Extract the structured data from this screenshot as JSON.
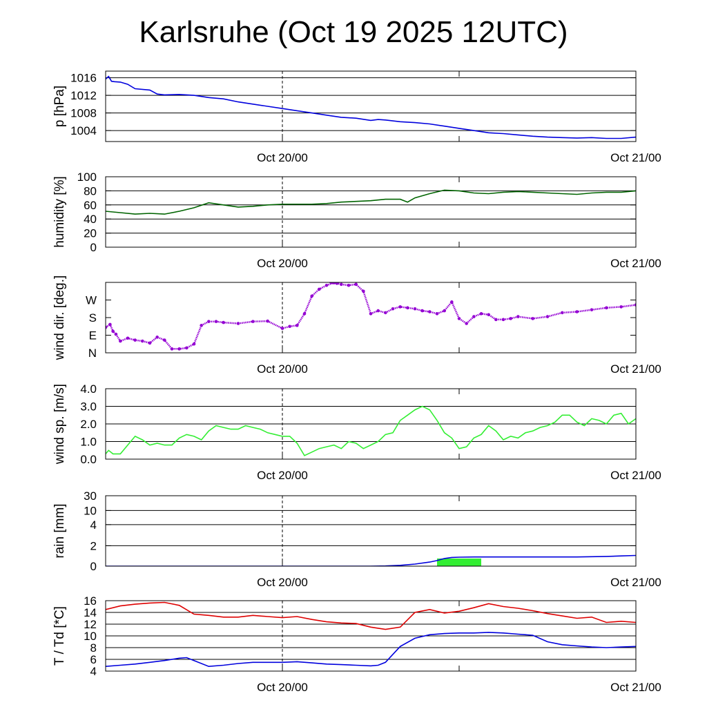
{
  "title": "Karlsruhe (Oct 19 2025 12UTC)",
  "colors": {
    "pressure": "#0000dd",
    "humidity": "#006400",
    "wind_dir": "#9400d3",
    "wind_sp": "#33ee33",
    "rain_line": "#0000dd",
    "rain_bar": "#33ee33",
    "temp": "#dd0000",
    "dewpoint": "#0000dd"
  },
  "chart_data": [
    {
      "id": "pressure",
      "type": "line",
      "ylabel": "p [hPa]",
      "ylim": [
        1001.5,
        1017.5
      ],
      "yticks": [
        1004,
        1008,
        1012,
        1016
      ],
      "yticklabels": [
        "1004",
        "1008",
        "1012",
        "1016"
      ],
      "xlim": [
        0,
        36
      ],
      "xticks": [
        12,
        36
      ],
      "xticklabels": [
        "Oct 20/00",
        "Oct 21/00"
      ],
      "series": [
        {
          "name": "pressure",
          "x": [
            0,
            0.2,
            0.4,
            0.6,
            1,
            1.5,
            2,
            3,
            3.5,
            4,
            5,
            6,
            7,
            8,
            9,
            10,
            11,
            12,
            13,
            14,
            15,
            16,
            17,
            18,
            18.5,
            19,
            20,
            21,
            22,
            23,
            24,
            25,
            26,
            27,
            28,
            29,
            30,
            31,
            32,
            33,
            34,
            35,
            36
          ],
          "y": [
            1015.7,
            1016.3,
            1015.2,
            1015.1,
            1015.0,
            1014.5,
            1013.5,
            1013.2,
            1012.3,
            1012.1,
            1012.2,
            1012.0,
            1011.5,
            1011.2,
            1010.5,
            1010.0,
            1009.5,
            1009.0,
            1008.5,
            1008.0,
            1007.5,
            1007.0,
            1006.8,
            1006.3,
            1006.5,
            1006.4,
            1006.0,
            1005.8,
            1005.5,
            1005.0,
            1004.5,
            1004.0,
            1003.5,
            1003.3,
            1003.0,
            1002.7,
            1002.5,
            1002.4,
            1002.3,
            1002.4,
            1002.2,
            1002.2,
            1002.5
          ]
        }
      ]
    },
    {
      "id": "humidity",
      "type": "line",
      "ylabel": "humidity [%]",
      "ylim": [
        0,
        100
      ],
      "yticks": [
        0,
        20,
        40,
        60,
        80,
        100
      ],
      "yticklabels": [
        "0",
        "20",
        "40",
        "60",
        "80",
        "100"
      ],
      "xlim": [
        0,
        36
      ],
      "xticks": [
        12,
        36
      ],
      "xticklabels": [
        "Oct 20/00",
        "Oct 21/00"
      ],
      "series": [
        {
          "name": "humidity",
          "x": [
            0,
            1,
            2,
            3,
            4,
            5,
            6,
            7,
            8,
            9,
            10,
            11,
            12,
            13,
            14,
            15,
            16,
            17,
            18,
            19,
            20,
            20.5,
            21,
            22,
            23,
            24,
            25,
            26,
            27,
            28,
            29,
            30,
            31,
            32,
            33,
            34,
            35,
            36
          ],
          "y": [
            51,
            49,
            47,
            48,
            47,
            51,
            56,
            63,
            60,
            57,
            58,
            60,
            61,
            61,
            61,
            62,
            64,
            65,
            66,
            68,
            68,
            64,
            70,
            76,
            81,
            80,
            77,
            76,
            78,
            79,
            78,
            77,
            76,
            75,
            77,
            78,
            78,
            80
          ]
        }
      ]
    },
    {
      "id": "wind_dir",
      "type": "scatter",
      "ylabel": "wind dir. [deg.]",
      "ylim": [
        0,
        360
      ],
      "yticks": [
        0,
        90,
        180,
        270
      ],
      "yticklabels": [
        "N",
        "E",
        "S",
        "W"
      ],
      "xlim": [
        0,
        36
      ],
      "xticks": [
        12,
        36
      ],
      "xticklabels": [
        "Oct 20/00",
        "Oct 21/00"
      ],
      "series": [
        {
          "name": "wind direction",
          "x": [
            0,
            0.3,
            0.5,
            0.7,
            1,
            1.5,
            2,
            2.5,
            3,
            3.5,
            4,
            4.5,
            5,
            5.5,
            6,
            6.5,
            7,
            7.5,
            8,
            9,
            10,
            11,
            12,
            12.5,
            13,
            13.5,
            14,
            14.5,
            15,
            15.5,
            16,
            16.5,
            17,
            17.5,
            18,
            18.5,
            19,
            19.5,
            20,
            20.5,
            21,
            21.5,
            22,
            22.5,
            23,
            23.5,
            24,
            24.5,
            25,
            25.5,
            26,
            26.5,
            27,
            27.5,
            28,
            29,
            30,
            31,
            32,
            33,
            34,
            35,
            36
          ],
          "y": [
            130,
            145,
            110,
            95,
            60,
            75,
            65,
            60,
            50,
            80,
            65,
            20,
            20,
            25,
            45,
            140,
            160,
            160,
            155,
            150,
            160,
            162,
            125,
            135,
            140,
            200,
            290,
            325,
            345,
            358,
            350,
            345,
            350,
            315,
            200,
            215,
            205,
            225,
            235,
            230,
            225,
            215,
            210,
            200,
            215,
            260,
            175,
            150,
            185,
            200,
            195,
            170,
            170,
            175,
            185,
            175,
            185,
            205,
            210,
            220,
            230,
            235,
            245
          ]
        },
        {
          "name": "wind direction (wrapped near north)",
          "x": [
            14.9,
            15.3,
            15.7,
            16.1
          ],
          "y": [
            372,
            360,
            355,
            370
          ]
        }
      ]
    },
    {
      "id": "wind_sp",
      "type": "line",
      "ylabel": "wind sp. [m/s]",
      "ylim": [
        0,
        4
      ],
      "yticks": [
        0,
        1,
        2,
        3,
        4
      ],
      "yticklabels": [
        "0.0",
        "1.0",
        "2.0",
        "3.0",
        "4.0"
      ],
      "xlim": [
        0,
        36
      ],
      "xticks": [
        12,
        36
      ],
      "xticklabels": [
        "Oct 20/00",
        "Oct 21/00"
      ],
      "series": [
        {
          "name": "wind speed",
          "x": [
            0,
            0.2,
            0.5,
            1,
            1.5,
            2,
            2.5,
            3,
            3.5,
            4,
            4.5,
            5,
            5.5,
            6,
            6.5,
            7,
            7.5,
            8,
            8.5,
            9,
            9.5,
            10,
            10.5,
            11,
            11.5,
            12,
            12.5,
            13,
            13.5,
            14,
            14.5,
            15,
            15.5,
            16,
            16.5,
            17,
            17.5,
            18,
            18.5,
            19,
            19.5,
            20,
            20.5,
            21,
            21.5,
            22,
            22.5,
            23,
            23.5,
            24,
            24.5,
            25,
            25.5,
            26,
            26.5,
            27,
            27.5,
            28,
            28.5,
            29,
            29.5,
            30,
            30.5,
            31,
            31.5,
            32,
            32.5,
            33,
            33.5,
            34,
            34.5,
            35,
            35.5,
            36
          ],
          "y": [
            0.3,
            0.5,
            0.3,
            0.3,
            0.8,
            1.3,
            1.1,
            0.8,
            0.9,
            0.8,
            0.8,
            1.2,
            1.4,
            1.3,
            1.1,
            1.6,
            1.9,
            1.8,
            1.7,
            1.7,
            1.9,
            1.8,
            1.7,
            1.5,
            1.4,
            1.3,
            1.3,
            0.9,
            0.2,
            0.4,
            0.6,
            0.7,
            0.8,
            0.6,
            1.0,
            0.9,
            0.6,
            0.8,
            1.0,
            1.4,
            1.5,
            2.2,
            2.5,
            2.8,
            3.0,
            2.8,
            2.2,
            1.5,
            1.2,
            0.6,
            0.7,
            1.2,
            1.4,
            1.9,
            1.6,
            1.1,
            1.3,
            1.2,
            1.5,
            1.6,
            1.8,
            1.9,
            2.1,
            2.5,
            2.5,
            2.1,
            1.9,
            2.3,
            2.2,
            2.0,
            2.5,
            2.6,
            2.0,
            2.3
          ]
        }
      ]
    },
    {
      "id": "rain",
      "type": "bar+line",
      "ylabel": "rain [mm]",
      "ylim": [
        0,
        30
      ],
      "yticks": [
        0,
        2,
        4,
        10,
        30
      ],
      "yticklabels": [
        "0",
        "2",
        "4",
        "10",
        "30"
      ],
      "xlim": [
        0,
        36
      ],
      "xticks": [
        12,
        36
      ],
      "xticklabels": [
        "Oct 20/00",
        "Oct 21/00"
      ],
      "bars": [
        {
          "x_start": 22.5,
          "x_end": 25.5,
          "value": 0.75
        }
      ],
      "series": [
        {
          "name": "cumulative rain",
          "x": [
            0,
            18,
            19,
            20,
            21,
            22,
            22.5,
            23,
            23.5,
            24,
            25,
            26,
            28,
            30,
            32,
            34,
            35,
            36
          ],
          "y": [
            0,
            0,
            0.02,
            0.08,
            0.2,
            0.4,
            0.55,
            0.75,
            0.85,
            0.88,
            0.9,
            0.9,
            0.9,
            0.9,
            0.9,
            0.95,
            1.0,
            1.05
          ]
        }
      ]
    },
    {
      "id": "temp",
      "type": "line",
      "ylabel": "T / Td [*C]",
      "ylim": [
        4,
        16
      ],
      "yticks": [
        4,
        6,
        8,
        10,
        12,
        14,
        16
      ],
      "yticklabels": [
        "4",
        "6",
        "8",
        "10",
        "12",
        "14",
        "16"
      ],
      "xlim": [
        0,
        36
      ],
      "xticks": [
        12,
        36
      ],
      "xticklabels": [
        "Oct 20/00",
        "Oct 21/00"
      ],
      "series": [
        {
          "name": "temperature",
          "x": [
            0,
            1,
            2,
            3,
            4,
            5,
            6,
            7,
            8,
            9,
            10,
            11,
            12,
            13,
            14,
            15,
            16,
            17,
            18,
            19,
            20,
            21,
            22,
            23,
            24,
            25,
            26,
            27,
            28,
            29,
            30,
            31,
            32,
            33,
            34,
            35,
            36
          ],
          "y": [
            14.5,
            15.1,
            15.4,
            15.6,
            15.7,
            15.2,
            13.7,
            13.5,
            13.2,
            13.2,
            13.5,
            13.3,
            13.1,
            13.3,
            12.8,
            12.4,
            12.2,
            12.1,
            11.5,
            11.1,
            11.5,
            14.0,
            14.5,
            13.9,
            14.2,
            14.8,
            15.5,
            15.0,
            14.7,
            14.3,
            13.8,
            13.4,
            13.0,
            13.2,
            12.3,
            12.5,
            12.3
          ]
        },
        {
          "name": "dewpoint",
          "x": [
            0,
            1,
            2,
            3,
            4,
            5,
            5.5,
            6,
            7,
            8,
            9,
            10,
            11,
            12,
            13,
            14,
            15,
            16,
            17,
            18,
            18.5,
            19,
            20,
            21,
            22,
            23,
            24,
            25,
            26,
            27,
            28,
            29,
            30,
            31,
            32,
            33,
            34,
            35,
            36
          ],
          "y": [
            4.8,
            5.0,
            5.2,
            5.5,
            5.8,
            6.2,
            6.3,
            5.8,
            4.8,
            5.0,
            5.3,
            5.5,
            5.5,
            5.5,
            5.6,
            5.4,
            5.2,
            5.1,
            5.0,
            4.9,
            5.0,
            5.5,
            8.2,
            9.6,
            10.2,
            10.4,
            10.5,
            10.5,
            10.6,
            10.5,
            10.3,
            10.1,
            9.0,
            8.5,
            8.3,
            8.1,
            8.0,
            8.1,
            8.2
          ]
        }
      ]
    }
  ]
}
